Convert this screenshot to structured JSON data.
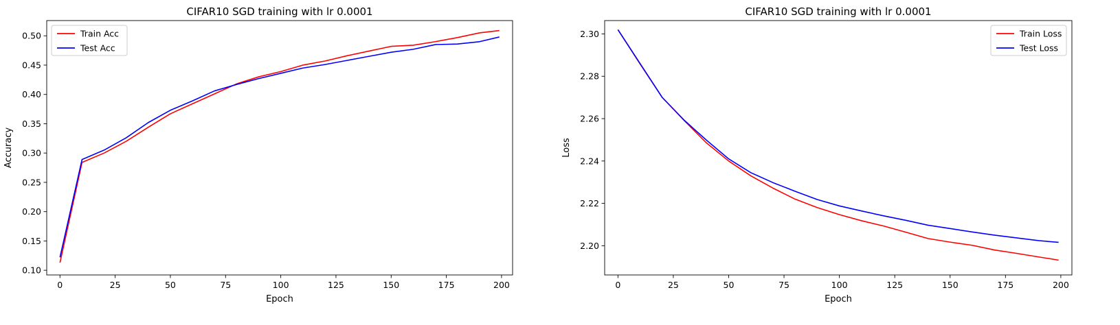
{
  "chart_data": [
    {
      "type": "line",
      "title": "CIFAR10 SGD training with lr 0.0001",
      "xlabel": "Epoch",
      "ylabel": "Accuracy",
      "xlim": [
        -6,
        205
      ],
      "ylim": [
        0.092,
        0.526
      ],
      "xticks": [
        0,
        25,
        50,
        75,
        100,
        125,
        150,
        175,
        200
      ],
      "yticks": [
        0.1,
        0.15,
        0.2,
        0.25,
        0.3,
        0.35,
        0.4,
        0.45,
        0.5
      ],
      "ytick_decimals": 2,
      "grid": false,
      "legend": "top-left",
      "x": [
        0,
        10,
        20,
        30,
        40,
        50,
        60,
        70,
        80,
        90,
        100,
        110,
        120,
        130,
        140,
        150,
        160,
        170,
        180,
        190,
        199
      ],
      "series": [
        {
          "name": "Train Acc",
          "color": "#ff0000",
          "values": [
            0.113,
            0.284,
            0.3,
            0.32,
            0.344,
            0.367,
            0.384,
            0.401,
            0.418,
            0.43,
            0.439,
            0.45,
            0.457,
            0.466,
            0.474,
            0.482,
            0.484,
            0.49,
            0.497,
            0.505,
            0.509
          ]
        },
        {
          "name": "Test Acc",
          "color": "#0000ff",
          "values": [
            0.122,
            0.289,
            0.305,
            0.326,
            0.352,
            0.373,
            0.389,
            0.406,
            0.417,
            0.427,
            0.436,
            0.445,
            0.451,
            0.458,
            0.465,
            0.472,
            0.477,
            0.485,
            0.486,
            0.49,
            0.498
          ]
        }
      ]
    },
    {
      "type": "line",
      "title": "CIFAR10 SGD training with lr 0.0001",
      "xlabel": "Epoch",
      "ylabel": "Loss",
      "xlim": [
        -6,
        205
      ],
      "ylim": [
        2.1862,
        2.3063
      ],
      "xticks": [
        0,
        25,
        50,
        75,
        100,
        125,
        150,
        175,
        200
      ],
      "yticks": [
        2.2,
        2.22,
        2.24,
        2.26,
        2.28,
        2.3
      ],
      "ytick_decimals": 2,
      "grid": false,
      "legend": "top-right",
      "x": [
        0,
        10,
        20,
        30,
        40,
        50,
        60,
        70,
        80,
        90,
        100,
        110,
        120,
        130,
        140,
        150,
        160,
        170,
        180,
        190,
        199
      ],
      "series": [
        {
          "name": "Train Loss",
          "color": "#ff0000",
          "values": [
            2.302,
            2.2858,
            2.27,
            2.259,
            2.2485,
            2.24,
            2.233,
            2.2272,
            2.222,
            2.218,
            2.2147,
            2.2118,
            2.2093,
            2.2064,
            2.2034,
            2.2017,
            2.2002,
            2.198,
            2.1964,
            2.1947,
            2.1932
          ]
        },
        {
          "name": "Test Loss",
          "color": "#0000ff",
          "values": [
            2.302,
            2.286,
            2.27,
            2.2592,
            2.2498,
            2.241,
            2.2345,
            2.2298,
            2.2257,
            2.2218,
            2.2188,
            2.2164,
            2.2141,
            2.212,
            2.2097,
            2.2081,
            2.2065,
            2.205,
            2.2037,
            2.2024,
            2.2016
          ]
        }
      ]
    }
  ]
}
